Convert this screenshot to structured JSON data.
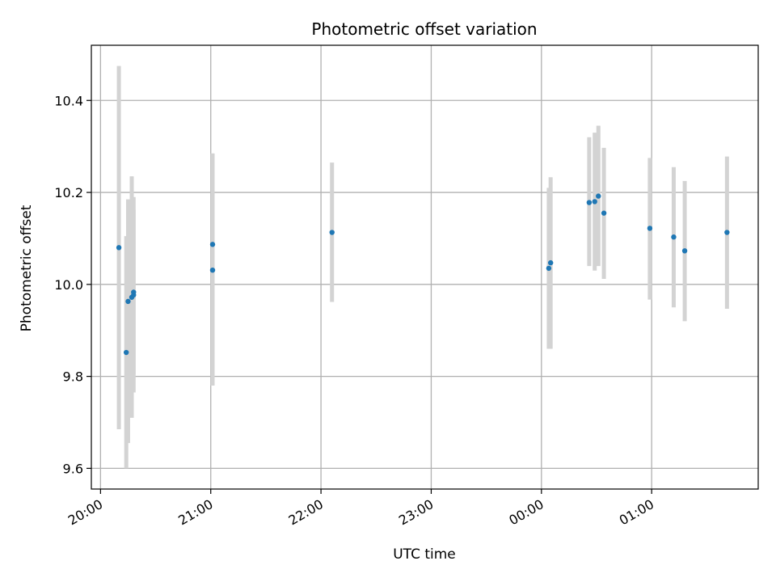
{
  "chart_data": {
    "type": "scatter",
    "title": "Photometric offset variation",
    "xlabel": "UTC time",
    "ylabel": "Photometric offset",
    "x_ticks": [
      "20:00",
      "21:00",
      "22:00",
      "23:00",
      "00:00",
      "01:00"
    ],
    "y_ticks": [
      "9.6",
      "9.8",
      "10.0",
      "10.2",
      "10.4"
    ],
    "xlim": [
      "19:55",
      "25:58"
    ],
    "ylim": [
      9.555,
      10.52
    ],
    "grid": true,
    "colors": {
      "points": "#1f77b4",
      "errorbars": "#d3d3d3",
      "grid": "#b0b0b0"
    },
    "points": [
      {
        "x": "20:10",
        "y": 10.08,
        "ylow": 9.685,
        "yhigh": 10.475
      },
      {
        "x": "20:14",
        "y": 9.852,
        "ylow": 9.6,
        "yhigh": 10.105
      },
      {
        "x": "20:15",
        "y": 9.963,
        "ylow": 9.655,
        "yhigh": 10.185
      },
      {
        "x": "20:17",
        "y": 9.972,
        "ylow": 9.71,
        "yhigh": 10.235
      },
      {
        "x": "20:18",
        "y": 9.977,
        "ylow": 9.765,
        "yhigh": 10.19
      },
      {
        "x": "20:18",
        "y": 9.983,
        "ylow": 9.805,
        "yhigh": 10.162
      },
      {
        "x": "21:01",
        "y": 10.087,
        "ylow": 9.89,
        "yhigh": 10.285
      },
      {
        "x": "21:01",
        "y": 10.031,
        "ylow": 9.78,
        "yhigh": 10.28
      },
      {
        "x": "22:06",
        "y": 10.113,
        "ylow": 9.962,
        "yhigh": 10.265
      },
      {
        "x": "24:04",
        "y": 10.035,
        "ylow": 9.86,
        "yhigh": 10.21
      },
      {
        "x": "24:05",
        "y": 10.047,
        "ylow": 9.86,
        "yhigh": 10.233
      },
      {
        "x": "24:26",
        "y": 10.178,
        "ylow": 10.04,
        "yhigh": 10.32
      },
      {
        "x": "24:29",
        "y": 10.18,
        "ylow": 10.03,
        "yhigh": 10.33
      },
      {
        "x": "24:31",
        "y": 10.192,
        "ylow": 10.04,
        "yhigh": 10.345
      },
      {
        "x": "24:34",
        "y": 10.155,
        "ylow": 10.012,
        "yhigh": 10.297
      },
      {
        "x": "24:59",
        "y": 10.122,
        "ylow": 9.967,
        "yhigh": 10.275
      },
      {
        "x": "25:12",
        "y": 10.103,
        "ylow": 9.95,
        "yhigh": 10.255
      },
      {
        "x": "25:18",
        "y": 10.073,
        "ylow": 9.92,
        "yhigh": 10.225
      },
      {
        "x": "25:41",
        "y": 10.113,
        "ylow": 9.947,
        "yhigh": 10.278
      }
    ]
  }
}
